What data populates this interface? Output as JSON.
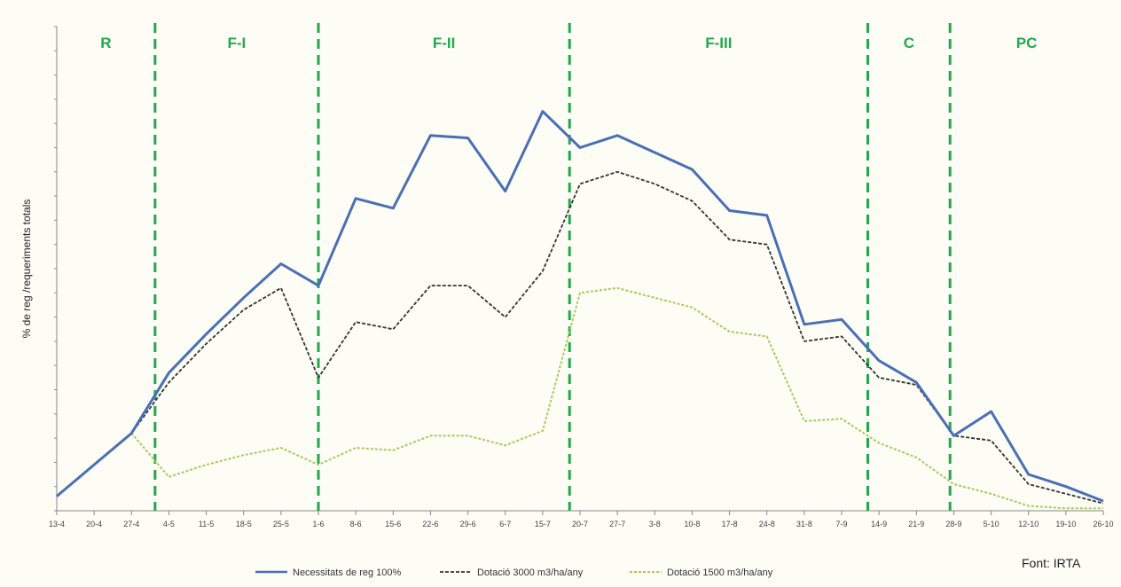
{
  "chart_data": {
    "type": "line",
    "title": "",
    "ylabel": "% de reg /requeriments totals",
    "xlabel": "",
    "ylim": [
      0,
      100
    ],
    "grid": false,
    "legend_position": "bottom",
    "source": "Font: IRTA",
    "x": [
      "13-4",
      "20-4",
      "27-4",
      "4-5",
      "11-5",
      "18-5",
      "25-5",
      "1-6",
      "8-6",
      "15-6",
      "22-6",
      "29-6",
      "6-7",
      "15-7",
      "20-7",
      "27-7",
      "3-8",
      "10-8",
      "17-8",
      "24-8",
      "31-8",
      "7-9",
      "14-9",
      "21-9",
      "28-9",
      "5-10",
      "12-10",
      "19-10",
      "26-10"
    ],
    "series": [
      {
        "name": "Necessitats de reg 100%",
        "color": "#4a6fb5",
        "style": "solid",
        "values": [
          3,
          9.5,
          16,
          28.5,
          36.5,
          44,
          51,
          46.5,
          64.5,
          62.5,
          77.5,
          77,
          66,
          82.5,
          75,
          77.5,
          74,
          70.5,
          62,
          61,
          38.5,
          39.5,
          31,
          26.5,
          15.5,
          20.5,
          7.5,
          5,
          2
        ]
      },
      {
        "name": "Dotació 3000 m3/ha/any",
        "color": "#333333",
        "style": "dash",
        "values": [
          3,
          9.5,
          16,
          26.5,
          34.5,
          41.5,
          46,
          27.5,
          39,
          37.5,
          46.5,
          46.5,
          40,
          49.5,
          67.5,
          70,
          67.5,
          64,
          56,
          55,
          35,
          36,
          27.5,
          26,
          15.5,
          14.5,
          5.5,
          3.5,
          1.5
        ]
      },
      {
        "name": "Dotació 1500 m3/ha/any",
        "color": "#a6cc58",
        "style": "dot",
        "values": [
          3,
          9.5,
          16,
          7,
          9.5,
          11.5,
          13,
          9.5,
          13,
          12.5,
          15.5,
          15.5,
          13.5,
          16.5,
          45,
          46,
          44,
          42,
          37,
          36,
          18.5,
          19,
          14,
          11,
          5.5,
          3.5,
          1,
          0.5,
          0.5
        ]
      }
    ],
    "phases": [
      {
        "label": "R",
        "start": -0.5,
        "end": 2.63
      },
      {
        "label": "F-I",
        "start": 2.63,
        "end": 7.0
      },
      {
        "label": "F-II",
        "start": 7.0,
        "end": 13.72
      },
      {
        "label": "F-III",
        "start": 13.72,
        "end": 21.7
      },
      {
        "label": "C",
        "start": 21.7,
        "end": 23.9
      },
      {
        "label": "PC",
        "start": 23.9,
        "end": 28.5
      }
    ],
    "divider_color": "#22a84b"
  }
}
